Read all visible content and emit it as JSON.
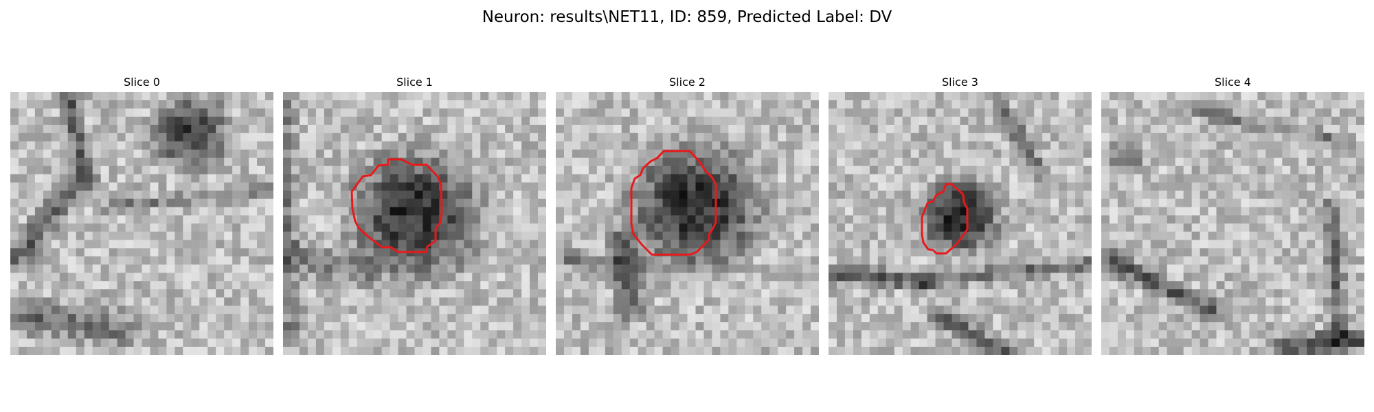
{
  "figure": {
    "title": "Neuron: results\\NET11, ID: 859, Predicted Label: DV"
  },
  "slices": [
    {
      "label": "Slice 0",
      "has_contour": false
    },
    {
      "label": "Slice 1",
      "has_contour": true
    },
    {
      "label": "Slice 2",
      "has_contour": true
    },
    {
      "label": "Slice 3",
      "has_contour": true
    },
    {
      "label": "Slice 4",
      "has_contour": false
    }
  ],
  "colors": {
    "contour": "#e8191b",
    "background": "#ffffff"
  },
  "image_style": "grayscale microscopy patch"
}
